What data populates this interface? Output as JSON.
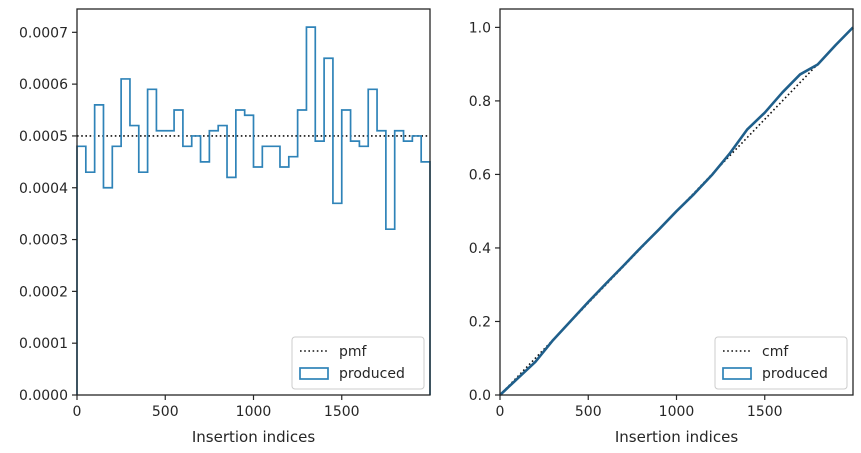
{
  "colors": {
    "produced": "#2f83b8",
    "reference": "#111111",
    "axes": "#262626",
    "cmf_produced_fill": "#1f5f8b"
  },
  "chart_data": [
    {
      "type": "line",
      "variant": "step-histogram",
      "xlabel": "Insertion indices",
      "ylabel": "",
      "xlim": [
        0,
        2000
      ],
      "ylim": [
        0,
        0.000745
      ],
      "xticks": [
        0,
        500,
        1000,
        1500
      ],
      "xtick_labels": [
        "0",
        "500",
        "1000",
        "1500"
      ],
      "yticks": [
        0,
        0.0001,
        0.0002,
        0.0003,
        0.0004,
        0.0005,
        0.0006,
        0.0007
      ],
      "ytick_labels": [
        "0.0000",
        "0.0001",
        "0.0002",
        "0.0003",
        "0.0004",
        "0.0005",
        "0.0006",
        "0.0007"
      ],
      "legend": {
        "placement": "lower-right",
        "entries": [
          "pmf",
          "produced"
        ]
      },
      "series": [
        {
          "name": "pmf",
          "style": "dotted",
          "x": [
            0,
            2000
          ],
          "y": [
            0.0005,
            0.0005
          ]
        },
        {
          "name": "produced",
          "style": "step",
          "bin_edges": [
            0,
            50,
            100,
            150,
            200,
            250,
            300,
            350,
            400,
            450,
            500,
            550,
            600,
            650,
            700,
            750,
            800,
            850,
            900,
            950,
            1000,
            1050,
            1100,
            1150,
            1200,
            1250,
            1300,
            1350,
            1400,
            1450,
            1500,
            1550,
            1600,
            1650,
            1700,
            1750,
            1800,
            1850,
            1900,
            1950,
            2000
          ],
          "values": [
            0.00048,
            0.00043,
            0.00056,
            0.0004,
            0.00048,
            0.00061,
            0.00052,
            0.00043,
            0.00059,
            0.00051,
            0.00051,
            0.00055,
            0.00048,
            0.0005,
            0.00045,
            0.00051,
            0.00052,
            0.00042,
            0.00055,
            0.00054,
            0.00044,
            0.00048,
            0.00048,
            0.00044,
            0.00046,
            0.00055,
            0.00071,
            0.00049,
            0.00065,
            0.00037,
            0.00055,
            0.00049,
            0.00048,
            0.00059,
            0.00051,
            0.00032,
            0.00051,
            0.00049,
            0.0005,
            0.00045
          ]
        }
      ]
    },
    {
      "type": "line",
      "variant": "cumulative",
      "xlabel": "Insertion indices",
      "ylabel": "",
      "xlim": [
        0,
        2000
      ],
      "ylim": [
        0,
        1.05
      ],
      "xticks": [
        0,
        500,
        1000,
        1500
      ],
      "xtick_labels": [
        "0",
        "500",
        "1000",
        "1500"
      ],
      "yticks": [
        0,
        0.2,
        0.4,
        0.6,
        0.8,
        1.0
      ],
      "ytick_labels": [
        "0.0",
        "0.2",
        "0.4",
        "0.6",
        "0.8",
        "1.0"
      ],
      "legend": {
        "placement": "lower-right",
        "entries": [
          "cmf",
          "produced"
        ]
      },
      "series": [
        {
          "name": "cmf",
          "style": "dotted",
          "x": [
            0,
            2000
          ],
          "y": [
            0,
            1.0
          ]
        },
        {
          "name": "produced",
          "style": "line",
          "x": [
            0,
            100,
            200,
            300,
            400,
            500,
            600,
            700,
            800,
            900,
            1000,
            1100,
            1200,
            1300,
            1350,
            1400,
            1500,
            1600,
            1700,
            1800,
            1900,
            2000
          ],
          "y": [
            0,
            0.045,
            0.09,
            0.149,
            0.201,
            0.253,
            0.303,
            0.352,
            0.402,
            0.45,
            0.5,
            0.547,
            0.598,
            0.656,
            0.689,
            0.722,
            0.768,
            0.823,
            0.872,
            0.899,
            0.951,
            1.0
          ]
        }
      ]
    }
  ]
}
